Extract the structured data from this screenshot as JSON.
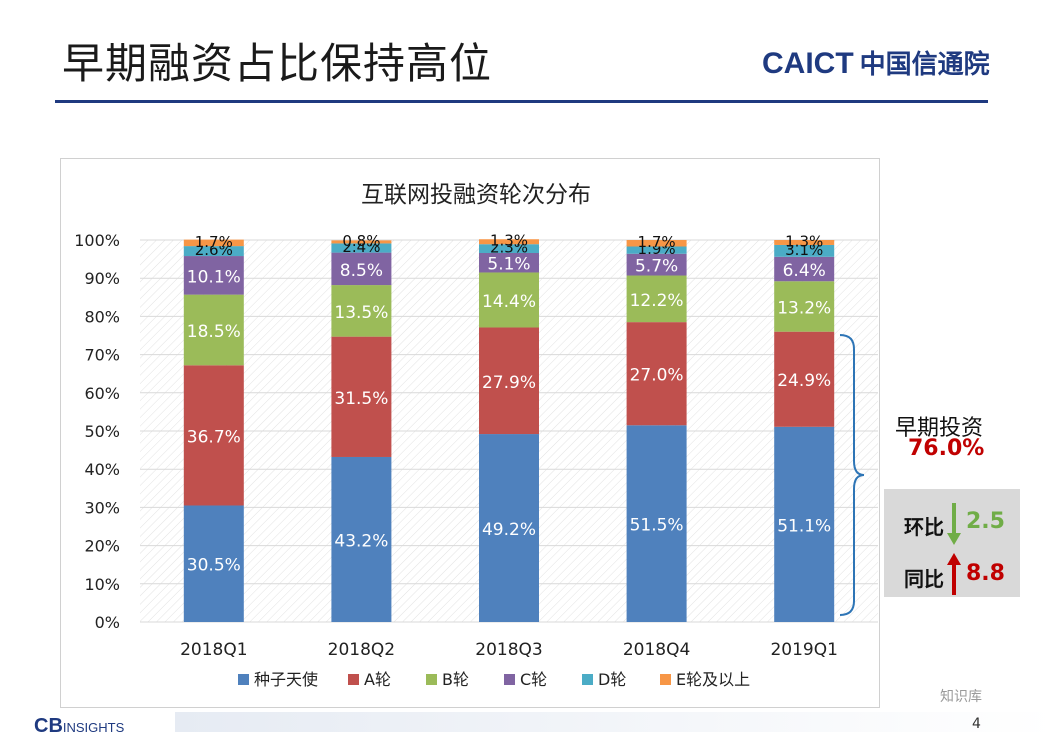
{
  "page": {
    "title": "早期融资占比保持高位",
    "logo_text": "CAICT",
    "logo_cn": "中国信通院",
    "footer_logo": "CB",
    "footer_logo_suffix": "INSIGHTS",
    "page_number": "4",
    "watermark_text": "知识库"
  },
  "side_panel": {
    "early_label": "早期投资",
    "early_value": "76.0%",
    "mom_label": "环比",
    "mom_value": "2.5",
    "mom_direction": "down",
    "yoy_label": "同比",
    "yoy_value": "8.8",
    "yoy_direction": "up"
  },
  "chart_data": {
    "type": "bar",
    "stacked": true,
    "title": "互联网投融资轮次分布",
    "categories": [
      "2018Q1",
      "2018Q2",
      "2018Q3",
      "2018Q4",
      "2019Q1"
    ],
    "ylim": [
      0,
      100
    ],
    "yticks": [
      "0%",
      "10%",
      "20%",
      "30%",
      "40%",
      "50%",
      "60%",
      "70%",
      "80%",
      "90%",
      "100%"
    ],
    "legend_position": "bottom",
    "series": [
      {
        "name": "种子天使",
        "color": "#4f81bd",
        "values": [
          30.5,
          43.2,
          49.2,
          51.5,
          51.1
        ],
        "labels": [
          "30.5%",
          "43.2%",
          "49.2%",
          "51.5%",
          "51.1%"
        ]
      },
      {
        "name": "A轮",
        "color": "#c0504d",
        "values": [
          36.7,
          31.5,
          27.9,
          27.0,
          24.9
        ],
        "labels": [
          "36.7%",
          "31.5%",
          "27.9%",
          "27.0%",
          "24.9%"
        ]
      },
      {
        "name": "B轮",
        "color": "#9bbb59",
        "values": [
          18.5,
          13.5,
          14.4,
          12.2,
          13.2
        ],
        "labels": [
          "18.5%",
          "13.5%",
          "14.4%",
          "12.2%",
          "13.2%"
        ]
      },
      {
        "name": "C轮",
        "color": "#8064a2",
        "values": [
          10.1,
          8.5,
          5.1,
          5.7,
          6.4
        ],
        "labels": [
          "10.1%",
          "8.5%",
          "5.1%",
          "5.7%",
          "6.4%"
        ]
      },
      {
        "name": "D轮",
        "color": "#4bacc6",
        "values": [
          2.6,
          2.4,
          2.3,
          1.9,
          3.1
        ],
        "labels": [
          "2.6%",
          "2.4%",
          "2.3%",
          "1.9%",
          "3.1%"
        ]
      },
      {
        "name": "E轮及以上",
        "color": "#f79646",
        "values": [
          1.7,
          0.8,
          1.3,
          1.7,
          1.3
        ],
        "labels": [
          "1.7%",
          "0.8%",
          "1.3%",
          "1.7%",
          "1.3%"
        ]
      }
    ]
  }
}
